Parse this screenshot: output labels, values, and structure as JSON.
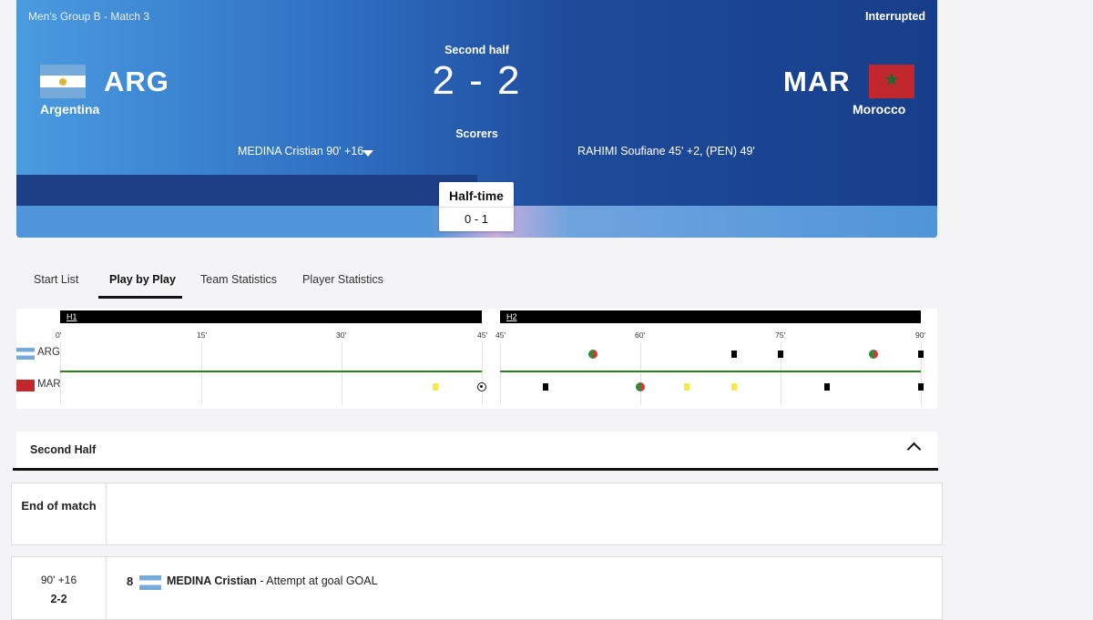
{
  "match": {
    "competition": "Men's Group B - Match 3",
    "status": "Interrupted",
    "period": "Second half",
    "score": "2 - 2",
    "scorers_label": "Scorers",
    "home": {
      "abbr": "ARG",
      "name": "Argentina",
      "scorers": "MEDINA Cristian 90' +16"
    },
    "away": {
      "abbr": "MAR",
      "name": "Morocco",
      "scorers": "RAHIMI Soufiane 45' +2, (PEN) 49'"
    },
    "halftime_label": "Half-time",
    "halftime_score": "0 - 1"
  },
  "tabs": [
    "Start List",
    "Play by Play",
    "Team Statistics",
    "Player Statistics"
  ],
  "active_tab": "Play by Play",
  "timeline": {
    "h1_label": "H1",
    "h2_label": "H2",
    "h1_ticks": [
      "0'",
      "15'",
      "30'",
      "45'"
    ],
    "h2_ticks": [
      "45'",
      "60'",
      "75'",
      "90'"
    ],
    "teams": [
      "ARG",
      "MAR"
    ]
  },
  "section": {
    "title": "Second Half"
  },
  "rows": [
    {
      "time": "End of match",
      "score": ""
    },
    {
      "time": "90' +16",
      "score": "2-2",
      "jersey": "8",
      "player": "MEDINA Cristian",
      "action": " - Attempt at goal GOAL"
    }
  ],
  "colors": {
    "accent_dark": "#1c3f86",
    "timeline_line": "#2e7d1e",
    "yellow_card": "#f5ea48"
  },
  "icons": {
    "expand": "caret-down-icon",
    "collapse": "chevron-up-icon",
    "goal": "ball-icon",
    "substitution": "substitution-icon"
  }
}
